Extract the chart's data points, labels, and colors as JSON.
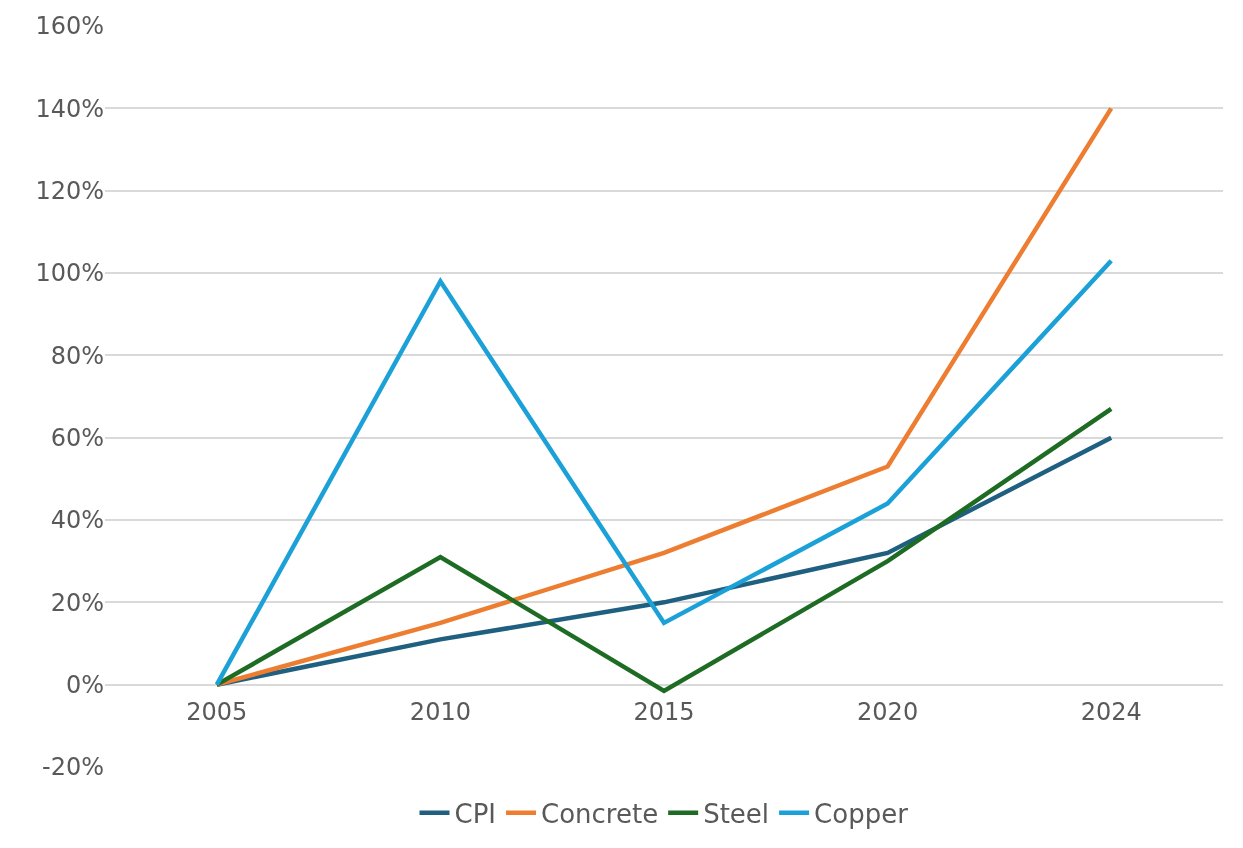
{
  "chart_data": {
    "type": "line",
    "categories": [
      "2005",
      "2010",
      "2015",
      "2020",
      "2024"
    ],
    "series": [
      {
        "name": "CPI",
        "color": "#1f5f7f",
        "values": [
          0,
          11,
          20,
          32,
          60
        ]
      },
      {
        "name": "Concrete",
        "color": "#ed7d31",
        "values": [
          0,
          15,
          32,
          53,
          140
        ]
      },
      {
        "name": "Steel",
        "color": "#1e6b24",
        "values": [
          0,
          31,
          -1.5,
          30,
          67
        ]
      },
      {
        "name": "Copper",
        "color": "#1ba1d8",
        "values": [
          0,
          98,
          15,
          44,
          103
        ]
      }
    ],
    "ylim": [
      -20,
      160
    ],
    "yticks": [
      {
        "value": -20,
        "label": "-20%"
      },
      {
        "value": 0,
        "label": "0%"
      },
      {
        "value": 20,
        "label": "20%"
      },
      {
        "value": 40,
        "label": "40%"
      },
      {
        "value": 60,
        "label": "60%"
      },
      {
        "value": 80,
        "label": "80%"
      },
      {
        "value": 100,
        "label": "100%"
      },
      {
        "value": 120,
        "label": "120%"
      },
      {
        "value": 140,
        "label": "140%"
      },
      {
        "value": 160,
        "label": "160%"
      }
    ],
    "grid": "y",
    "legend": "bottom",
    "marker": "none",
    "line_style": "solid"
  }
}
